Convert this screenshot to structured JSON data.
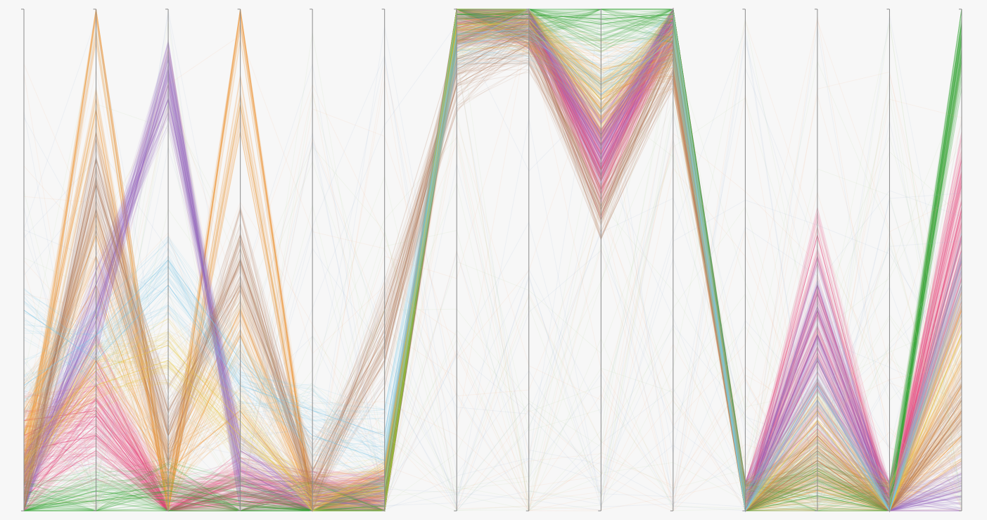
{
  "chart_data": {
    "type": "parallel_coordinates",
    "title": "",
    "dimensions": [
      {
        "name": "",
        "range": [
          0,
          1
        ]
      },
      {
        "name": "",
        "range": [
          0,
          1
        ]
      },
      {
        "name": "",
        "range": [
          0,
          1
        ]
      },
      {
        "name": "",
        "range": [
          0,
          1
        ]
      },
      {
        "name": "",
        "range": [
          0,
          1
        ]
      },
      {
        "name": "",
        "range": [
          0,
          1
        ]
      },
      {
        "name": "",
        "range": [
          0,
          1
        ]
      },
      {
        "name": "",
        "range": [
          0,
          1
        ]
      },
      {
        "name": "",
        "range": [
          0,
          1
        ]
      },
      {
        "name": "",
        "range": [
          0,
          1
        ]
      },
      {
        "name": "",
        "range": [
          0,
          1
        ]
      },
      {
        "name": "",
        "range": [
          0,
          1
        ]
      },
      {
        "name": "",
        "range": [
          0,
          1
        ]
      },
      {
        "name": "",
        "range": [
          0,
          1
        ]
      }
    ],
    "groups": [
      {
        "color": "#e8457a",
        "lines": [
          [
            0.18,
            0.2,
            0.0,
            0.03,
            0.02,
            0.02,
            0.99,
            0.98,
            0.7,
            0.98,
            0.0,
            0.3,
            0.0,
            0.45
          ],
          [
            0.05,
            0.17,
            0.0,
            0.02,
            0.01,
            0.02,
            0.98,
            0.99,
            0.66,
            0.99,
            0.0,
            0.2,
            0.0,
            0.6
          ],
          [
            0.1,
            0.25,
            0.01,
            0.05,
            0.03,
            0.04,
            0.99,
            0.98,
            0.73,
            0.96,
            0.0,
            0.35,
            0.0,
            0.5
          ],
          [
            0.02,
            0.19,
            0.0,
            0.04,
            0.0,
            0.01,
            0.99,
            0.99,
            0.68,
            0.97,
            0.0,
            0.25,
            0.0,
            0.7
          ],
          [
            0.12,
            0.15,
            0.02,
            0.03,
            0.01,
            0.02,
            0.97,
            0.98,
            0.71,
            0.98,
            0.0,
            0.4,
            0.0,
            0.55
          ],
          [
            0.06,
            0.3,
            0.0,
            0.06,
            0.02,
            0.05,
            0.99,
            0.99,
            0.64,
            0.99,
            0.0,
            0.55,
            0.0,
            0.4
          ],
          [
            0.15,
            0.22,
            0.03,
            0.02,
            0.01,
            0.03,
            0.98,
            0.98,
            0.75,
            0.97,
            0.0,
            0.15,
            0.0,
            0.65
          ],
          [
            0.03,
            0.12,
            0.0,
            0.04,
            0.02,
            0.02,
            0.99,
            0.99,
            0.69,
            0.98,
            0.0,
            0.45,
            0.0,
            0.52
          ]
        ]
      },
      {
        "color": "#f29a3e",
        "lines": [
          [
            0.05,
            0.99,
            0.0,
            0.99,
            0.0,
            0.02,
            0.99,
            0.99,
            0.8,
            0.96,
            0.0,
            0.1,
            0.0,
            0.25
          ],
          [
            0.1,
            0.8,
            0.0,
            0.81,
            0.0,
            0.03,
            0.98,
            0.98,
            0.78,
            0.94,
            0.0,
            0.08,
            0.0,
            0.3
          ],
          [
            0.2,
            0.45,
            0.05,
            0.35,
            0.02,
            0.05,
            0.97,
            0.97,
            0.82,
            0.9,
            0.0,
            0.05,
            0.0,
            0.15
          ],
          [
            0.08,
            0.3,
            0.08,
            0.2,
            0.01,
            0.02,
            0.96,
            0.96,
            0.85,
            0.92,
            0.0,
            0.07,
            0.0,
            0.2
          ],
          [
            0.15,
            0.55,
            0.1,
            0.4,
            0.03,
            0.04,
            0.95,
            0.97,
            0.88,
            0.91,
            0.0,
            0.04,
            0.0,
            0.1
          ]
        ]
      },
      {
        "color": "#9b6cc4",
        "lines": [
          [
            0.03,
            0.4,
            0.85,
            0.1,
            0.02,
            0.01,
            0.98,
            0.99,
            0.75,
            0.97,
            0.0,
            0.35,
            0.0,
            0.05
          ],
          [
            0.05,
            0.35,
            0.88,
            0.08,
            0.01,
            0.02,
            0.99,
            0.98,
            0.72,
            0.98,
            0.0,
            0.4,
            0.0,
            0.03
          ],
          [
            0.02,
            0.45,
            0.82,
            0.12,
            0.03,
            0.02,
            0.98,
            0.99,
            0.7,
            0.99,
            0.0,
            0.3,
            0.0,
            0.06
          ],
          [
            0.07,
            0.38,
            0.9,
            0.05,
            0.02,
            0.01,
            0.99,
            0.98,
            0.74,
            0.97,
            0.0,
            0.45,
            0.0,
            0.04
          ]
        ]
      },
      {
        "color": "#3aa83a",
        "lines": [
          [
            0.0,
            0.02,
            0.03,
            0.01,
            0.0,
            0.0,
            0.99,
            0.99,
            0.98,
            0.99,
            0.0,
            0.05,
            0.0,
            0.95
          ],
          [
            0.0,
            0.03,
            0.05,
            0.02,
            0.0,
            0.01,
            0.99,
            0.99,
            0.97,
            0.99,
            0.0,
            0.08,
            0.0,
            0.92
          ],
          [
            0.01,
            0.02,
            0.04,
            0.01,
            0.0,
            0.0,
            0.99,
            0.98,
            0.99,
            0.98,
            0.0,
            0.03,
            0.0,
            0.9
          ],
          [
            0.0,
            0.04,
            0.02,
            0.0,
            0.0,
            0.01,
            0.98,
            0.99,
            0.98,
            0.99,
            0.0,
            0.06,
            0.0,
            0.97
          ]
        ]
      },
      {
        "color": "#b07a5a",
        "lines": [
          [
            0.02,
            0.7,
            0.15,
            0.5,
            0.05,
            0.3,
            0.9,
            0.95,
            0.6,
            0.9,
            0.0,
            0.1,
            0.0,
            0.2
          ],
          [
            0.05,
            0.65,
            0.2,
            0.45,
            0.08,
            0.35,
            0.85,
            0.93,
            0.62,
            0.92,
            0.0,
            0.12,
            0.0,
            0.18
          ],
          [
            0.03,
            0.6,
            0.1,
            0.55,
            0.04,
            0.4,
            0.88,
            0.96,
            0.58,
            0.91,
            0.0,
            0.09,
            0.0,
            0.22
          ]
        ]
      },
      {
        "color": "#e8c93e",
        "lines": [
          [
            0.1,
            0.25,
            0.3,
            0.15,
            0.03,
            0.05,
            0.97,
            0.97,
            0.8,
            0.95,
            0.0,
            0.2,
            0.0,
            0.35
          ],
          [
            0.12,
            0.28,
            0.33,
            0.18,
            0.02,
            0.04,
            0.96,
            0.98,
            0.82,
            0.96,
            0.0,
            0.18,
            0.0,
            0.4
          ]
        ]
      },
      {
        "color": "#7cc7e8",
        "lines": [
          [
            0.25,
            0.35,
            0.5,
            0.3,
            0.15,
            0.1,
            0.95,
            0.96,
            0.85,
            0.95,
            0.0,
            0.25,
            0.0,
            0.5
          ],
          [
            0.4,
            0.3,
            0.45,
            0.25,
            0.2,
            0.15,
            0.93,
            0.95,
            0.83,
            0.94,
            0.0,
            0.22,
            0.0,
            0.45
          ]
        ]
      }
    ]
  }
}
